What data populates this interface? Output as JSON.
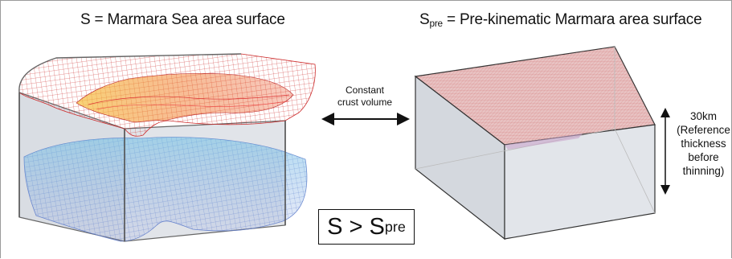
{
  "title_left": "S = Marmara Sea area surface",
  "title_right": {
    "base": "S",
    "sub": "pre",
    "rest": " = Pre-kinematic Marmara area surface"
  },
  "arrow_label_line1": "Constant",
  "arrow_label_line2": "crust volume",
  "thickness_label": [
    "30km",
    "(Reference",
    "thickness",
    "before",
    "thinning)"
  ],
  "inequality": {
    "lhs": "S > S",
    "sub": "pre"
  },
  "colors": {
    "mesh_top": "#cc2b2b",
    "mesh_hot": "#f2a12b",
    "mesh_bottom": "#5a78c8",
    "box_face": "#d6dbe2",
    "top_face": "#e6b3b3"
  }
}
